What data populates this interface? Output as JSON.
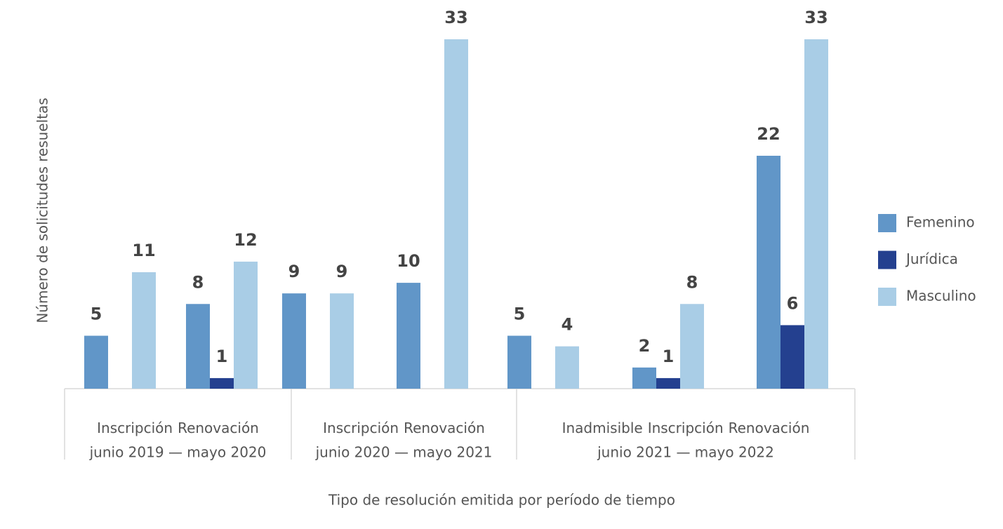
{
  "chart_data": {
    "type": "bar",
    "y_label": "Número de solicitudes resueltas",
    "x_label": "Tipo de resolución emitida por período de tiempo",
    "groups": [
      {
        "label": "junio 2019 — mayo 2020",
        "categories": [
          "Inscripción",
          "Renovación"
        ]
      },
      {
        "label": "junio 2020 — mayo 2021",
        "categories": [
          "Inscripción",
          "Renovación"
        ]
      },
      {
        "label": "junio 2021 — mayo 2022",
        "categories": [
          "Inadmisible",
          "Inscripción",
          "Renovación"
        ]
      }
    ],
    "series": [
      {
        "name": "Femenino",
        "color": "#6196c8",
        "values": [
          5,
          8,
          9,
          10,
          5,
          2,
          22
        ]
      },
      {
        "name": "Jurídica",
        "color": "#24408f",
        "values": [
          null,
          1,
          null,
          null,
          null,
          1,
          6
        ]
      },
      {
        "name": "Masculino",
        "color": "#a9cde6",
        "values": [
          11,
          12,
          9,
          33,
          4,
          8,
          33
        ]
      }
    ],
    "legend": "right"
  }
}
